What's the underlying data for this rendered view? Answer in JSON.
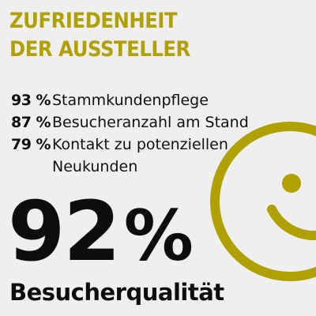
{
  "headline": {
    "line1": "ZUFRIEDENHEIT",
    "line2": "DER AUSSTELLER"
  },
  "stats": [
    {
      "value": "93 %",
      "label": "Stammkundenpflege"
    },
    {
      "value": "87 %",
      "label": "Besucheranzahl am Stand"
    },
    {
      "value": "79 %",
      "label": "Kontakt zu potenziellen Neukunden"
    }
  ],
  "highlight": {
    "number": "92",
    "unit": "%",
    "caption": "Besucherqualität"
  },
  "colors": {
    "accent": "#b0a000",
    "text": "#111111",
    "background": "#efefef"
  },
  "icons": {
    "smiley": "smiley-face-icon"
  }
}
